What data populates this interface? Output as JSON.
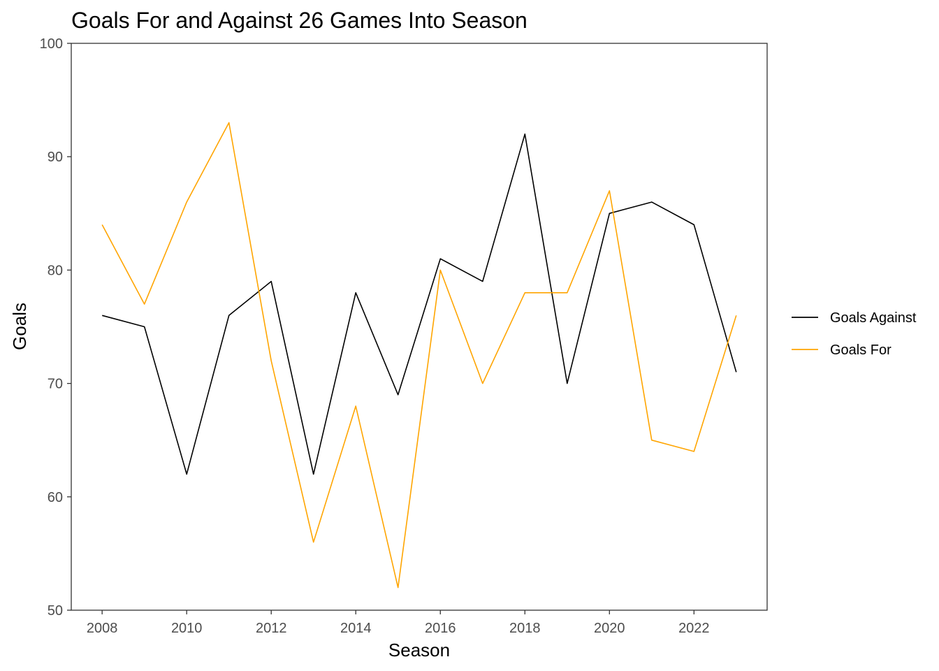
{
  "chart_data": {
    "type": "line",
    "title": "Goals For and Against 26 Games Into Season",
    "xlabel": "Season",
    "ylabel": "Goals",
    "x": [
      2008,
      2009,
      2010,
      2011,
      2012,
      2013,
      2014,
      2015,
      2016,
      2017,
      2018,
      2019,
      2020,
      2021,
      2022,
      2023
    ],
    "xlim": [
      2007.27,
      2023.73
    ],
    "ylim": [
      50,
      100
    ],
    "x_ticks": [
      "2008",
      "2010",
      "2012",
      "2014",
      "2016",
      "2018",
      "2020",
      "2022"
    ],
    "y_ticks": [
      "50",
      "60",
      "70",
      "80",
      "90",
      "100"
    ],
    "grid": false,
    "legend_position": "right",
    "series": [
      {
        "name": "Goals Against",
        "color": "#000000",
        "values": [
          76,
          75,
          62,
          76,
          79,
          62,
          78,
          69,
          81,
          79,
          92,
          70,
          85,
          86,
          84,
          71
        ]
      },
      {
        "name": "Goals For",
        "color": "#FFA500",
        "values": [
          84,
          77,
          86,
          93,
          72,
          56,
          68,
          52,
          80,
          70,
          78,
          78,
          87,
          65,
          64,
          76
        ]
      }
    ]
  }
}
